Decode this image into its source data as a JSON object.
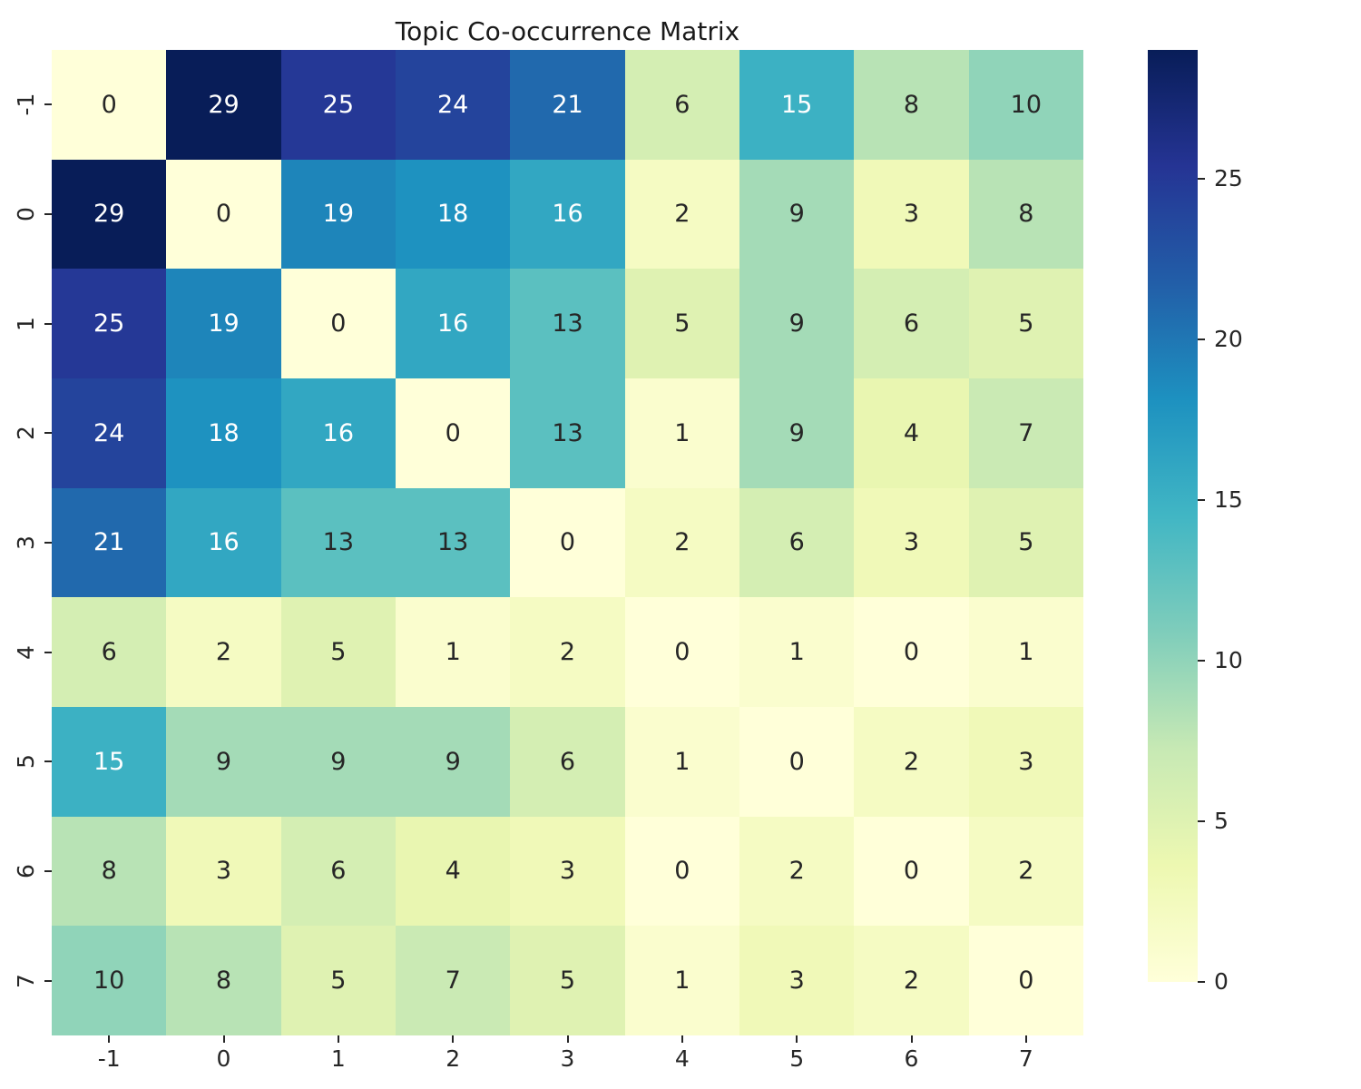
{
  "title": "Topic Co-occurrence Matrix",
  "chart_data": {
    "type": "heatmap",
    "title": "Topic Co-occurrence Matrix",
    "x_tick_labels": [
      "-1",
      "0",
      "1",
      "2",
      "3",
      "4",
      "5",
      "6",
      "7"
    ],
    "y_tick_labels": [
      "-1",
      "0",
      "1",
      "2",
      "3",
      "4",
      "5",
      "6",
      "7"
    ],
    "matrix": [
      [
        0,
        29,
        25,
        24,
        21,
        6,
        15,
        8,
        10
      ],
      [
        29,
        0,
        19,
        18,
        16,
        2,
        9,
        3,
        8
      ],
      [
        25,
        19,
        0,
        16,
        13,
        5,
        9,
        6,
        5
      ],
      [
        24,
        18,
        16,
        0,
        13,
        1,
        9,
        4,
        7
      ],
      [
        21,
        16,
        13,
        13,
        0,
        2,
        6,
        3,
        5
      ],
      [
        6,
        2,
        5,
        1,
        2,
        0,
        1,
        0,
        1
      ],
      [
        15,
        9,
        9,
        9,
        6,
        1,
        0,
        2,
        3
      ],
      [
        8,
        3,
        6,
        4,
        3,
        0,
        2,
        0,
        2
      ],
      [
        10,
        8,
        5,
        7,
        5,
        1,
        3,
        2,
        0
      ]
    ],
    "vmin": 0,
    "vmax": 29,
    "colormap": {
      "name": "YlGnBu",
      "anchors": [
        "#ffffd9",
        "#edf8b1",
        "#c7e9b4",
        "#7fcdbb",
        "#41b6c4",
        "#1d91c0",
        "#225ea8",
        "#253494",
        "#081d58"
      ]
    },
    "colorbar_ticks": [
      0,
      5,
      10,
      15,
      20,
      25
    ],
    "annotation_color_dark": "#262626",
    "annotation_color_light": "#ffffff",
    "background": "#ffffff",
    "legend_position": "right-colorbar",
    "grid": false
  }
}
